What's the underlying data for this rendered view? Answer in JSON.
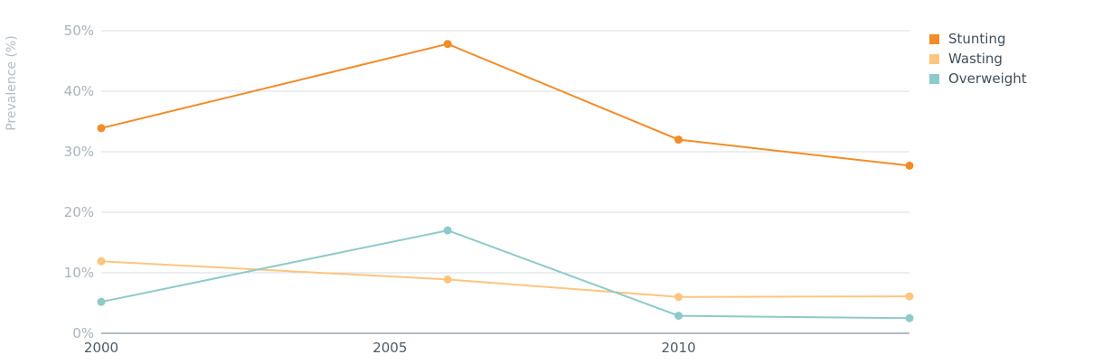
{
  "chart_data": {
    "type": "line",
    "x": [
      2000,
      2006,
      2010,
      2014
    ],
    "xticks": [
      "2000",
      "2005",
      "2010"
    ],
    "xlim": [
      2000,
      2014
    ],
    "ylim": [
      0,
      50
    ],
    "yticks": [
      "0%",
      "10%",
      "20%",
      "30%",
      "40%",
      "50%"
    ],
    "ylabel": "Prevalence (%)",
    "grid": true,
    "legend_position": "top-right",
    "series": [
      {
        "name": "Stunting",
        "color": "#f28c28",
        "values": [
          33.9,
          47.8,
          32.0,
          27.7
        ]
      },
      {
        "name": "Wasting",
        "color": "#fdc57f",
        "values": [
          11.9,
          8.9,
          6.0,
          6.1
        ]
      },
      {
        "name": "Overweight",
        "color": "#8ecac9",
        "values": [
          5.2,
          17.0,
          2.9,
          2.5
        ]
      }
    ]
  }
}
